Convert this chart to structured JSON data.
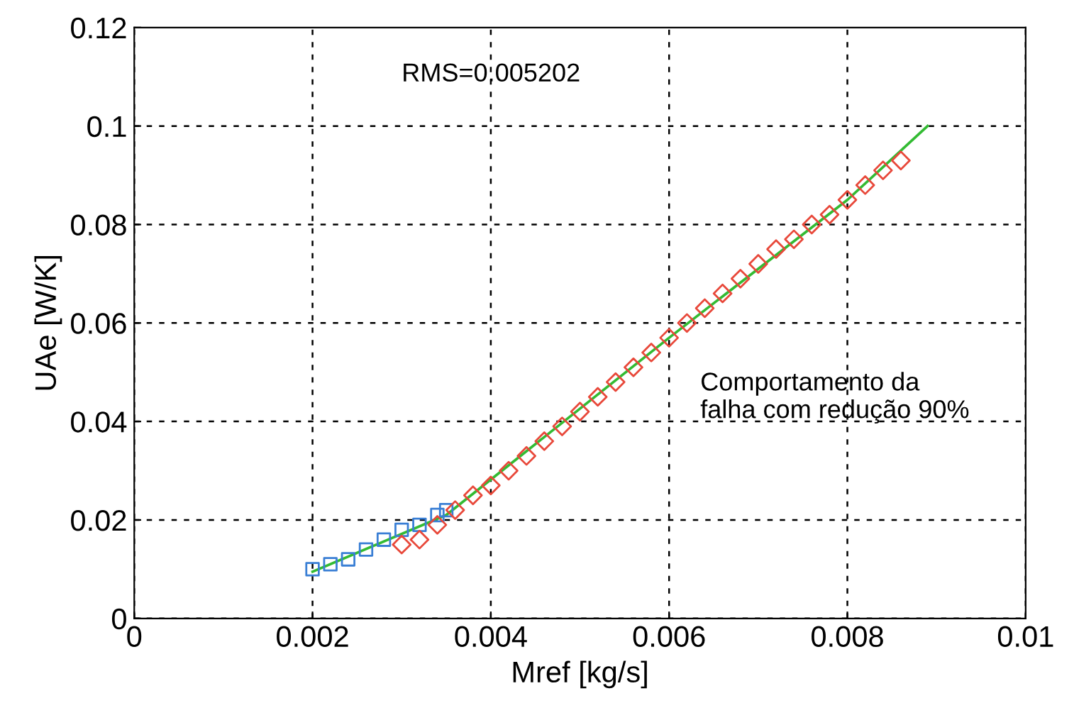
{
  "chart_data": {
    "type": "scatter",
    "xlabel": "Mref [kg/s]",
    "ylabel": "UAe [W/K]",
    "xlim": [
      0,
      0.01
    ],
    "xticks": [
      0,
      0.002,
      0.004,
      0.006,
      0.008,
      0.01
    ],
    "ylim": [
      0,
      0.12
    ],
    "yticks": [
      0,
      0.02,
      0.04,
      0.06,
      0.08,
      0.1,
      0.12
    ],
    "grid": true,
    "legend": false,
    "annotations": [
      "RMS=0.005202",
      "Comportamento da\nfalha com redução 90%"
    ],
    "series": [
      {
        "type": "line",
        "color": "#33bb33",
        "marker": "none",
        "x": [
          0.002,
          0.0035,
          0.006,
          0.008,
          0.0089
        ],
        "values": [
          0.0095,
          0.021,
          0.057,
          0.085,
          0.1
        ]
      },
      {
        "color": "#3a7fd5",
        "marker": "square",
        "x": [
          0.002,
          0.0022,
          0.0024,
          0.0026,
          0.0028,
          0.003,
          0.0032,
          0.0034,
          0.0035
        ],
        "values": [
          0.01,
          0.011,
          0.012,
          0.014,
          0.016,
          0.018,
          0.019,
          0.021,
          0.022
        ]
      },
      {
        "color": "#e8483a",
        "marker": "diamond",
        "x": [
          0.003,
          0.0032,
          0.0034,
          0.0036,
          0.0038,
          0.004,
          0.0042,
          0.0044,
          0.0046,
          0.0048,
          0.005,
          0.0052,
          0.0054,
          0.0056,
          0.0058,
          0.006,
          0.0062,
          0.0064,
          0.0066,
          0.0068,
          0.007,
          0.0072,
          0.0074,
          0.0076,
          0.0078,
          0.008,
          0.0082,
          0.0084,
          0.0086
        ],
        "values": [
          0.015,
          0.016,
          0.019,
          0.022,
          0.025,
          0.027,
          0.03,
          0.033,
          0.036,
          0.039,
          0.042,
          0.045,
          0.048,
          0.051,
          0.054,
          0.057,
          0.06,
          0.063,
          0.066,
          0.069,
          0.072,
          0.075,
          0.077,
          0.08,
          0.082,
          0.085,
          0.088,
          0.091,
          0.093
        ]
      }
    ]
  }
}
